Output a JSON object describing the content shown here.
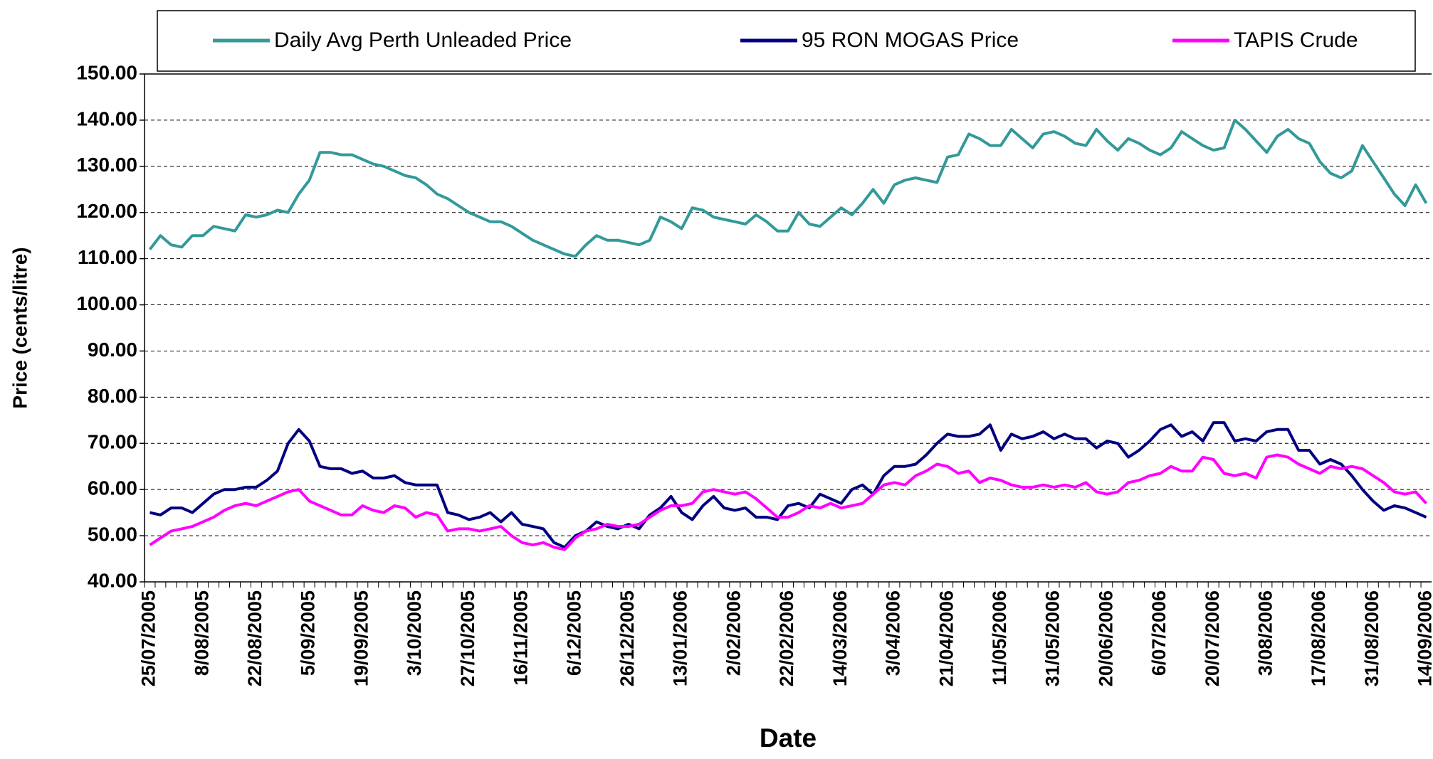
{
  "chart_data": {
    "type": "line",
    "x_label": "Date",
    "y_label": "Price (cents/litre)",
    "legend": "top",
    "grid": true,
    "categories": [
      "25/07/2005",
      null,
      null,
      null,
      null,
      "8/08/2005",
      null,
      null,
      null,
      null,
      "22/08/2005",
      null,
      null,
      null,
      null,
      "5/09/2005",
      null,
      null,
      null,
      null,
      "19/09/2005",
      null,
      null,
      null,
      null,
      "3/10/2005",
      null,
      null,
      null,
      null,
      "27/10/2005",
      null,
      null,
      null,
      null,
      "16/11/2005",
      null,
      null,
      null,
      null,
      "6/12/2005",
      null,
      null,
      null,
      null,
      "26/12/2005",
      null,
      null,
      null,
      null,
      "13/01/2006",
      null,
      null,
      null,
      null,
      "2/02/2006",
      null,
      null,
      null,
      null,
      "22/02/2006",
      null,
      null,
      null,
      null,
      "14/03/2006",
      null,
      null,
      null,
      null,
      "3/04/2006",
      null,
      null,
      null,
      null,
      "21/04/2006",
      null,
      null,
      null,
      null,
      "11/05/2006",
      null,
      null,
      null,
      null,
      "31/05/2006",
      null,
      null,
      null,
      null,
      "20/06/2006",
      null,
      null,
      null,
      null,
      "6/07/2006",
      null,
      null,
      null,
      null,
      "20/07/2006",
      null,
      null,
      null,
      null,
      "3/08/2006",
      null,
      null,
      null,
      null,
      "17/08/2006",
      null,
      null,
      null,
      null,
      "31/08/2006",
      null,
      null,
      null,
      null,
      "14/09/2006"
    ],
    "series": [
      {
        "name": "Daily Avg Perth Unleaded Price",
        "color": "#339999",
        "values": [
          112,
          115,
          113,
          112.5,
          115,
          115,
          117,
          116.5,
          116,
          119.5,
          119,
          119.5,
          120.5,
          120,
          124,
          127,
          133,
          133,
          132.5,
          132.5,
          131.5,
          130.5,
          130,
          129,
          128,
          127.5,
          126,
          124,
          123,
          121.5,
          120,
          119,
          118,
          118,
          117,
          115.5,
          114,
          113,
          112,
          111,
          110.5,
          113,
          115,
          114,
          114,
          113.5,
          113,
          114,
          119,
          118,
          116.5,
          121,
          120.5,
          119,
          118.5,
          118,
          117.5,
          119.5,
          118,
          116,
          116,
          120,
          117.5,
          117,
          119,
          121,
          119.5,
          122,
          125,
          122,
          126,
          127,
          127.5,
          127,
          126.5,
          132,
          132.5,
          137,
          136,
          134.5,
          134.5,
          138,
          136,
          134,
          137,
          137.5,
          136.5,
          135,
          134.5,
          138,
          135.5,
          133.5,
          136,
          135,
          133.5,
          132.5,
          134,
          137.5,
          136,
          134.5,
          133.5,
          134,
          140,
          138,
          135.5,
          133,
          136.5,
          138,
          136,
          135,
          131,
          128.5,
          127.5,
          129,
          134.5,
          131,
          127.5,
          124,
          121.5,
          126,
          122
        ]
      },
      {
        "name": "95 RON MOGAS Price",
        "color": "#000080",
        "values": [
          55,
          54.5,
          56,
          56,
          55,
          57,
          59,
          60,
          60,
          60.5,
          60.5,
          62,
          64,
          70,
          73,
          70.5,
          65,
          64.5,
          64.5,
          63.5,
          64,
          62.5,
          62.5,
          63,
          61.5,
          61,
          61,
          61,
          55,
          54.5,
          53.5,
          54,
          55,
          53,
          55,
          52.5,
          52,
          51.5,
          48.5,
          47.5,
          50,
          51,
          53,
          52,
          51.5,
          52.5,
          51.5,
          54.5,
          56,
          58.5,
          55,
          53.5,
          56.5,
          58.5,
          56,
          55.5,
          56,
          54,
          54,
          53.5,
          56.5,
          57,
          56,
          59,
          58,
          57,
          60,
          61,
          59,
          63,
          65,
          65,
          65.5,
          67.5,
          70,
          72,
          71.5,
          71.5,
          72,
          74,
          68.5,
          72,
          71,
          71.5,
          72.5,
          71,
          72,
          71,
          71,
          69,
          70.5,
          70,
          67,
          68.5,
          70.5,
          73,
          74,
          71.5,
          72.5,
          70.5,
          74.5,
          74.5,
          70.5,
          71,
          70.5,
          72.5,
          73,
          73,
          68.5,
          68.5,
          65.5,
          66.5,
          65.5,
          63,
          60,
          57.5,
          55.5,
          56.5,
          56,
          55,
          54
        ]
      },
      {
        "name": "TAPIS Crude",
        "color": "#ff00ff",
        "values": [
          48,
          49.5,
          51,
          51.5,
          52,
          53,
          54,
          55.5,
          56.5,
          57,
          56.5,
          57.5,
          58.5,
          59.5,
          60,
          57.5,
          56.5,
          55.5,
          54.5,
          54.5,
          56.5,
          55.5,
          55,
          56.5,
          56,
          54,
          55,
          54.5,
          51,
          51.5,
          51.5,
          51,
          51.5,
          52,
          50,
          48.5,
          48,
          48.5,
          47.5,
          47,
          49.5,
          51,
          51.5,
          52.5,
          52,
          52,
          52.5,
          54,
          55.5,
          56.5,
          56.5,
          57,
          59.5,
          60,
          59.5,
          59,
          59.5,
          58,
          56,
          54,
          54,
          55,
          56.5,
          56,
          57,
          56,
          56.5,
          57,
          59,
          61,
          61.5,
          61,
          63,
          64,
          65.5,
          65,
          63.5,
          64,
          61.5,
          62.5,
          62,
          61,
          60.5,
          60.5,
          61,
          60.5,
          61,
          60.5,
          61.5,
          59.5,
          59,
          59.5,
          61.5,
          62,
          63,
          63.5,
          65,
          64,
          64,
          67,
          66.5,
          63.5,
          63,
          63.5,
          62.5,
          67,
          67.5,
          67,
          65.5,
          64.5,
          63.5,
          65,
          64.5,
          65,
          64.5,
          63,
          61.5,
          59.5,
          59,
          59.5,
          57
        ]
      }
    ],
    "ylim": [
      40,
      150
    ],
    "yticks": [
      {
        "value": 40,
        "label": "40.00"
      },
      {
        "value": 50,
        "label": "50.00"
      },
      {
        "value": 60,
        "label": "60.00"
      },
      {
        "value": 70,
        "label": "70.00"
      },
      {
        "value": 80,
        "label": "80.00"
      },
      {
        "value": 90,
        "label": "90.00"
      },
      {
        "value": 100,
        "label": "100.00"
      },
      {
        "value": 110,
        "label": "110.00"
      },
      {
        "value": 120,
        "label": "120.00"
      },
      {
        "value": 130,
        "label": "130.00"
      },
      {
        "value": 140,
        "label": "140.00"
      },
      {
        "value": 150,
        "label": "150.00"
      }
    ]
  }
}
